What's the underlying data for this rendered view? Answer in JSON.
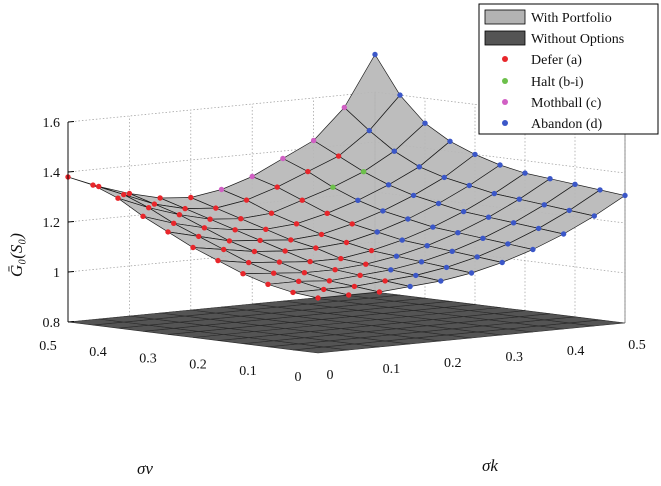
{
  "chart_data": {
    "type": "surface3d",
    "zlabel": "Ḡ₀(S₀)",
    "xlabel": "σk",
    "ylabel": "σv",
    "x_axis": {
      "ticks": [
        0,
        0.1,
        0.2,
        0.3,
        0.4,
        0.5
      ],
      "labels": [
        "0",
        "0.1",
        "0.2",
        "0.3",
        "0.4",
        "0.5"
      ]
    },
    "y_axis": {
      "ticks": [
        0,
        0.1,
        0.2,
        0.3,
        0.4,
        0.5
      ],
      "labels": [
        "0",
        "0.1",
        "0.2",
        "0.3",
        "0.4",
        "0.5"
      ]
    },
    "z_axis": {
      "range": [
        0.8,
        1.6
      ],
      "ticks": [
        0.8,
        1,
        1.2,
        1.4,
        1.6
      ],
      "labels": [
        "0.8",
        "1",
        "1.2",
        "1.4",
        "1.6"
      ]
    },
    "grid": true,
    "legend_position": "top-right",
    "grid_n": 11,
    "series": [
      {
        "name": "With Portfolio",
        "kind": "surface",
        "color": "#b3b3b3"
      },
      {
        "name": "Without Options",
        "kind": "surface",
        "color": "#545454",
        "value": 0.8
      },
      {
        "name": "Defer (a)",
        "kind": "points",
        "color": "#e8262b"
      },
      {
        "name": "Halt (b-i)",
        "kind": "points",
        "color": "#6cc04a"
      },
      {
        "name": "Mothball (c)",
        "kind": "points",
        "color": "#d15fc4"
      },
      {
        "name": "Abandon (d)",
        "kind": "points",
        "color": "#3b57c8"
      }
    ],
    "surface_note": "value grid indexed [k][v], k and v step 0.05 from 0 to 0.5",
    "values": [
      [
        1.02,
        1.03,
        1.05,
        1.08,
        1.12,
        1.16,
        1.21,
        1.26,
        1.32,
        1.36,
        1.38
      ],
      [
        1.02,
        1.03,
        1.05,
        1.07,
        1.1,
        1.14,
        1.18,
        1.22,
        1.27,
        1.31,
        1.33
      ],
      [
        1.02,
        1.03,
        1.04,
        1.06,
        1.09,
        1.12,
        1.15,
        1.19,
        1.23,
        1.26,
        1.29
      ],
      [
        1.03,
        1.04,
        1.05,
        1.06,
        1.08,
        1.11,
        1.14,
        1.17,
        1.2,
        1.23,
        1.26
      ],
      [
        1.04,
        1.05,
        1.06,
        1.07,
        1.08,
        1.11,
        1.13,
        1.16,
        1.19,
        1.22,
        1.25
      ],
      [
        1.06,
        1.07,
        1.08,
        1.09,
        1.1,
        1.12,
        1.14,
        1.17,
        1.2,
        1.24,
        1.27
      ],
      [
        1.09,
        1.1,
        1.11,
        1.12,
        1.13,
        1.15,
        1.17,
        1.2,
        1.24,
        1.28,
        1.31
      ],
      [
        1.13,
        1.14,
        1.15,
        1.16,
        1.17,
        1.19,
        1.21,
        1.24,
        1.28,
        1.33,
        1.37
      ],
      [
        1.18,
        1.19,
        1.2,
        1.21,
        1.22,
        1.24,
        1.26,
        1.29,
        1.33,
        1.38,
        1.43
      ],
      [
        1.24,
        1.25,
        1.26,
        1.27,
        1.28,
        1.3,
        1.32,
        1.35,
        1.4,
        1.47,
        1.55
      ],
      [
        1.31,
        1.32,
        1.33,
        1.34,
        1.35,
        1.37,
        1.4,
        1.44,
        1.5,
        1.6,
        1.75
      ]
    ],
    "point_types": [
      [
        "a",
        "a",
        "a",
        "a",
        "a",
        "a",
        "a",
        "a",
        "a",
        "a",
        "a"
      ],
      [
        "a",
        "a",
        "a",
        "a",
        "a",
        "a",
        "a",
        "a",
        "a",
        "a",
        "a"
      ],
      [
        "a",
        "a",
        "a",
        "a",
        "a",
        "a",
        "a",
        "a",
        "a",
        "a",
        "a"
      ],
      [
        "d",
        "a",
        "a",
        "a",
        "a",
        "a",
        "a",
        "a",
        "a",
        "a",
        "a"
      ],
      [
        "d",
        "d",
        "d",
        "a",
        "a",
        "a",
        "a",
        "a",
        "a",
        "a",
        "a"
      ],
      [
        "d",
        "d",
        "d",
        "d",
        "a",
        "a",
        "a",
        "a",
        "a",
        "a",
        "c"
      ],
      [
        "d",
        "d",
        "d",
        "d",
        "d",
        "d",
        "a",
        "a",
        "a",
        "a",
        "c"
      ],
      [
        "d",
        "d",
        "d",
        "d",
        "d",
        "d",
        "d",
        "d",
        "b",
        "a",
        "c"
      ],
      [
        "d",
        "d",
        "d",
        "d",
        "d",
        "d",
        "d",
        "d",
        "b",
        "a",
        "c"
      ],
      [
        "d",
        "d",
        "d",
        "d",
        "d",
        "d",
        "d",
        "d",
        "d",
        "d",
        "c"
      ],
      [
        "d",
        "d",
        "d",
        "d",
        "d",
        "d",
        "d",
        "d",
        "d",
        "d",
        "d"
      ]
    ]
  }
}
